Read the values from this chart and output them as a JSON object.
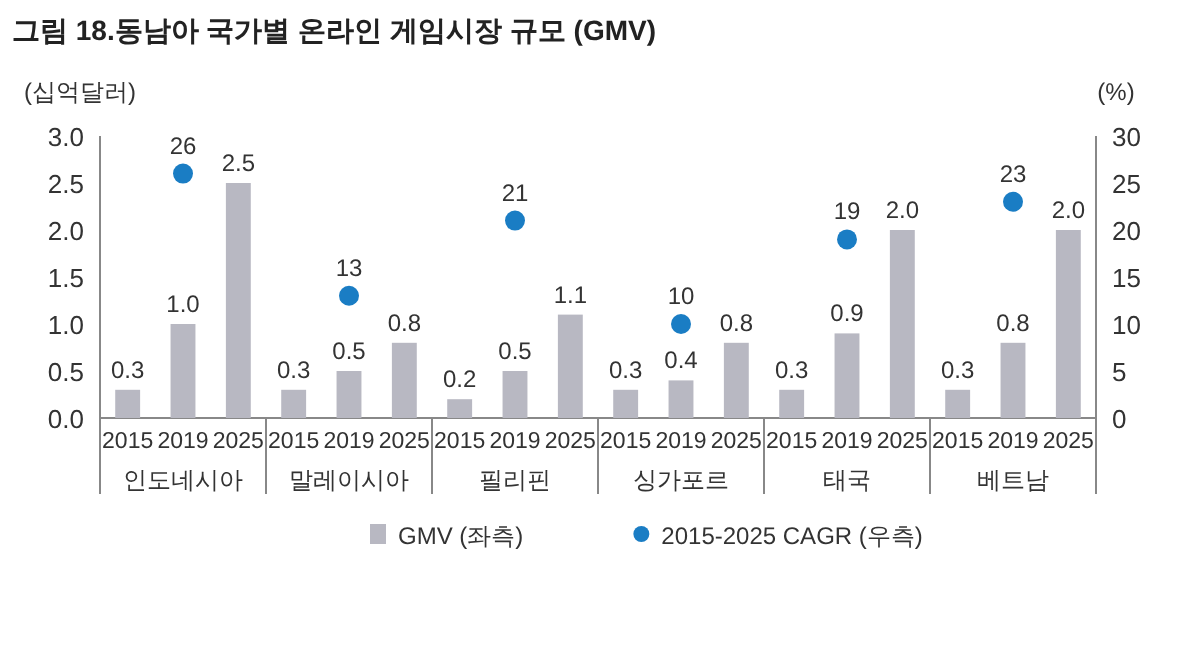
{
  "chart_data": {
    "type": "bar",
    "title": "그림 18.동남아 국가별 온라인 게임시장 규모 (GMV)",
    "ylabel": "(십억달러)",
    "y2label": "(%)",
    "categories": [
      "2015",
      "2019",
      "2025",
      "2015",
      "2019",
      "2025",
      "2015",
      "2019",
      "2025",
      "2015",
      "2019",
      "2025",
      "2015",
      "2019",
      "2025",
      "2015",
      "2019",
      "2025"
    ],
    "annotations": [
      "인도네시아",
      "말레이시아",
      "필리핀",
      "싱가포르",
      "태국",
      "베트남"
    ],
    "series": [
      {
        "name": "GMV (좌측)",
        "color": "#b8b8c2",
        "values": [
          0.3,
          1.0,
          2.5,
          0.3,
          0.5,
          0.8,
          0.2,
          0.5,
          1.1,
          0.3,
          0.4,
          0.8,
          0.3,
          0.9,
          2.0,
          0.3,
          0.8,
          2.0
        ],
        "value_labels": [
          "0.3",
          "1.0",
          "2.5",
          "0.3",
          "0.5",
          "0.8",
          "0.2",
          "0.5",
          "1.1",
          "0.3",
          "0.4",
          "0.8",
          "0.3",
          "0.9",
          "2.0",
          "0.3",
          "0.8",
          "2.0"
        ]
      },
      {
        "name": "2015-2025 CAGR (우측)",
        "type": "scatter",
        "axis": "y2",
        "marker": "circle",
        "color": "#1a7dc4",
        "values": [
          null,
          26,
          null,
          null,
          13,
          null,
          null,
          21,
          null,
          null,
          10,
          null,
          null,
          19,
          null,
          null,
          23,
          null
        ]
      }
    ],
    "ylim": [
      0,
      3
    ],
    "yticks": [
      {
        "value": 0,
        "label": "0.0"
      },
      {
        "value": 0.5,
        "label": "0.5"
      },
      {
        "value": 1,
        "label": "1.0"
      },
      {
        "value": 1.5,
        "label": "1.5"
      },
      {
        "value": 2,
        "label": "2.0"
      },
      {
        "value": 2.5,
        "label": "2.5"
      },
      {
        "value": 3,
        "label": "3.0"
      }
    ],
    "y2lim": [
      0,
      30
    ],
    "y2ticks": [
      0,
      5,
      10,
      15,
      20,
      25,
      30
    ],
    "data_labels": true,
    "legend": "bottom"
  }
}
